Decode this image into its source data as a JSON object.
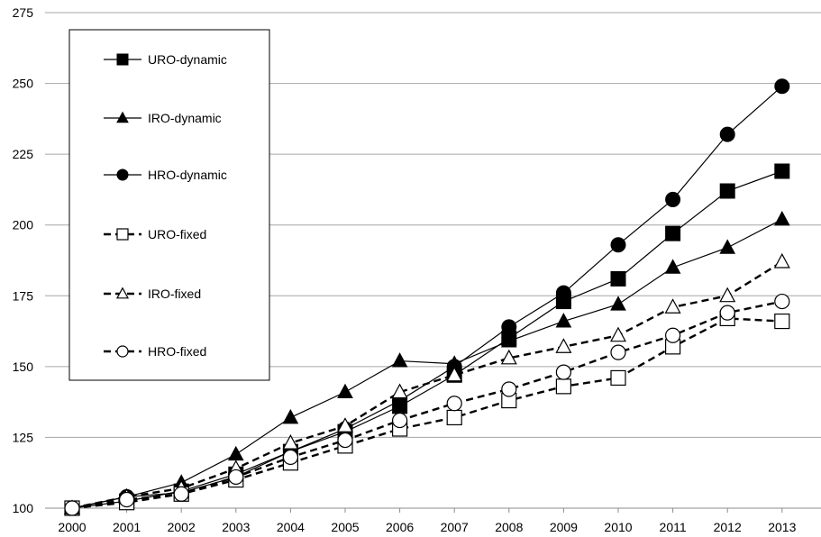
{
  "chart_data": {
    "type": "line",
    "title": "",
    "xlabel": "",
    "ylabel": "",
    "x": [
      "2000",
      "2001",
      "2002",
      "2003",
      "2004",
      "2005",
      "2006",
      "2007",
      "2008",
      "2009",
      "2010",
      "2011",
      "2012",
      "2013"
    ],
    "ylim": [
      100,
      275
    ],
    "yticks": [
      "100",
      "125",
      "150",
      "175",
      "200",
      "225",
      "250",
      "275"
    ],
    "grid": "horizontal",
    "legend_position": "top-left",
    "series": [
      {
        "name": "URO-dynamic",
        "style": "solid",
        "marker": "square-filled",
        "values": [
          100,
          102.5,
          106,
          112,
          120,
          127,
          136,
          147,
          160,
          173,
          181,
          197,
          212,
          219
        ]
      },
      {
        "name": "IRO-dynamic",
        "style": "solid",
        "marker": "triangle-filled",
        "values": [
          100,
          104,
          109,
          119,
          132,
          141,
          152,
          151,
          159,
          166,
          172,
          185,
          192,
          202
        ]
      },
      {
        "name": "HRO-dynamic",
        "style": "solid",
        "marker": "circle-filled",
        "values": [
          100,
          104,
          105.5,
          111,
          120,
          128,
          138,
          150,
          164,
          176,
          193,
          209,
          232,
          249
        ]
      },
      {
        "name": "URO-fixed",
        "style": "dashed",
        "marker": "square-open",
        "values": [
          100,
          102,
          105,
          110,
          116,
          122,
          128,
          132,
          138,
          143,
          146,
          157,
          167,
          166
        ]
      },
      {
        "name": "IRO-fixed",
        "style": "dashed",
        "marker": "triangle-open",
        "values": [
          100,
          104,
          107,
          114,
          123,
          129,
          141,
          147,
          153,
          157,
          161,
          171,
          175,
          187
        ]
      },
      {
        "name": "HRO-fixed",
        "style": "dashed",
        "marker": "circle-open",
        "values": [
          100,
          103,
          105,
          111,
          118,
          124,
          131,
          137,
          142,
          148,
          155,
          161,
          169,
          173
        ]
      }
    ]
  }
}
